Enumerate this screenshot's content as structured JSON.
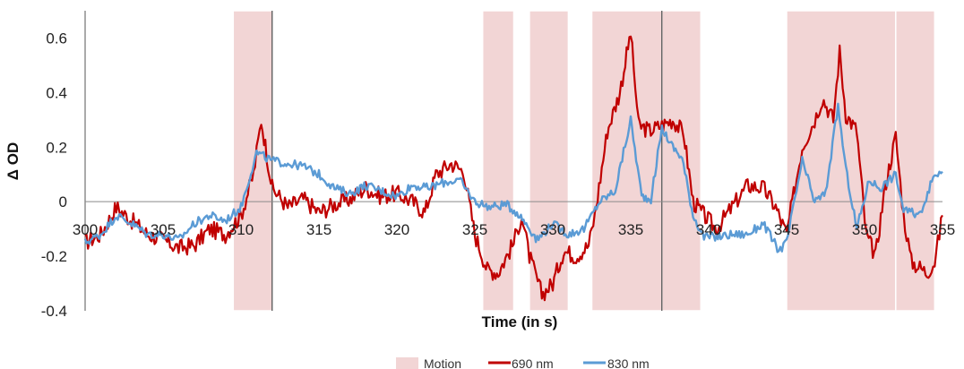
{
  "chart_data": {
    "type": "line",
    "title": "",
    "xlabel": "Time (in s)",
    "ylabel": "Δ OD",
    "xlim": [
      300,
      355
    ],
    "ylim": [
      -0.4,
      0.7
    ],
    "x_ticks": [
      "300",
      "305",
      "310",
      "315",
      "320",
      "325",
      "330",
      "335",
      "340",
      "345",
      "350",
      "355"
    ],
    "y_ticks": [
      "0.6",
      "0.4",
      "0.2",
      "0",
      "-0.2",
      "-0.4"
    ],
    "grid": false,
    "legend_position": "bottom",
    "motion_label": "Motion",
    "motion_color": "#f2d5d5",
    "motion_intervals": [
      [
        309.5,
        312
      ],
      [
        325.5,
        327.5
      ],
      [
        328.5,
        331
      ],
      [
        332.5,
        337
      ],
      [
        337,
        339.5
      ],
      [
        345,
        352
      ],
      [
        352,
        354.5
      ]
    ],
    "event_markers": [
      312,
      337
    ],
    "series": [
      {
        "name": "690 nm",
        "color": "#c00000",
        "x": [
          300,
          301,
          302,
          303,
          304,
          305,
          306,
          307,
          308,
          309,
          310,
          310.8,
          311.3,
          312,
          313,
          314,
          315,
          316,
          317,
          318,
          319,
          320,
          321,
          321.8,
          322.5,
          323.5,
          324.3,
          325,
          325.8,
          326.5,
          327.5,
          328,
          328.5,
          329.3,
          330,
          330.7,
          331.5,
          332.3,
          332.7,
          333.5,
          334.3,
          335,
          335.5,
          336.2,
          337,
          337.7,
          338.4,
          339,
          339.7,
          340.5,
          341.5,
          342.5,
          343.5,
          344.3,
          345,
          346,
          346.8,
          347.3,
          348,
          348.4,
          348.8,
          349.5,
          350.1,
          350.7,
          351.3,
          352,
          352.5,
          353,
          354,
          354.5,
          355
        ],
        "y": [
          -0.15,
          -0.12,
          -0.02,
          -0.07,
          -0.12,
          -0.14,
          -0.17,
          -0.16,
          -0.1,
          -0.12,
          -0.05,
          0.1,
          0.3,
          0.05,
          -0.02,
          0.01,
          -0.04,
          -0.01,
          0.01,
          0.05,
          0.02,
          0.03,
          0.0,
          -0.04,
          0.1,
          0.14,
          0.11,
          -0.12,
          -0.25,
          -0.26,
          -0.15,
          -0.05,
          -0.2,
          -0.34,
          -0.3,
          -0.18,
          -0.2,
          -0.16,
          -0.05,
          0.26,
          0.4,
          0.62,
          0.28,
          0.26,
          0.28,
          0.3,
          0.25,
          0.0,
          -0.05,
          -0.1,
          -0.02,
          0.06,
          0.05,
          -0.02,
          -0.12,
          0.2,
          0.3,
          0.38,
          0.3,
          0.55,
          0.32,
          0.26,
          -0.12,
          -0.2,
          0.05,
          0.24,
          -0.05,
          -0.22,
          -0.26,
          -0.22,
          -0.05
        ]
      },
      {
        "name": "830 nm",
        "color": "#5b9bd5",
        "x": [
          300,
          301,
          302,
          303,
          304,
          305,
          306,
          307,
          308,
          309,
          310,
          311,
          312,
          313,
          314,
          315,
          316,
          317,
          318,
          319,
          320,
          321,
          322,
          323,
          324,
          325,
          326,
          327,
          327.7,
          328.3,
          329,
          330,
          331,
          332,
          333,
          334,
          335,
          335.7,
          336.3,
          337,
          337.7,
          338.3,
          339,
          339.7,
          340.5,
          341.5,
          342.5,
          343.5,
          344.5,
          345,
          346,
          346.8,
          347.5,
          348.3,
          348.8,
          349.5,
          350.3,
          351,
          352,
          352.5,
          353.5,
          354.5,
          355
        ],
        "y": [
          -0.15,
          -0.12,
          -0.05,
          -0.08,
          -0.12,
          -0.12,
          -0.14,
          -0.08,
          -0.05,
          -0.07,
          -0.02,
          0.18,
          0.15,
          0.14,
          0.13,
          0.1,
          0.05,
          0.03,
          0.06,
          0.04,
          0.02,
          0.06,
          0.05,
          0.07,
          0.08,
          0.0,
          -0.02,
          -0.01,
          -0.04,
          -0.08,
          -0.14,
          -0.08,
          -0.12,
          -0.1,
          0.0,
          0.04,
          0.3,
          0.02,
          0.01,
          0.27,
          0.2,
          0.16,
          -0.05,
          -0.13,
          -0.13,
          -0.12,
          -0.12,
          -0.08,
          -0.18,
          -0.15,
          0.15,
          0.0,
          0.03,
          0.35,
          0.12,
          -0.1,
          0.08,
          0.05,
          0.1,
          -0.03,
          -0.05,
          0.1,
          0.11
        ]
      }
    ]
  }
}
